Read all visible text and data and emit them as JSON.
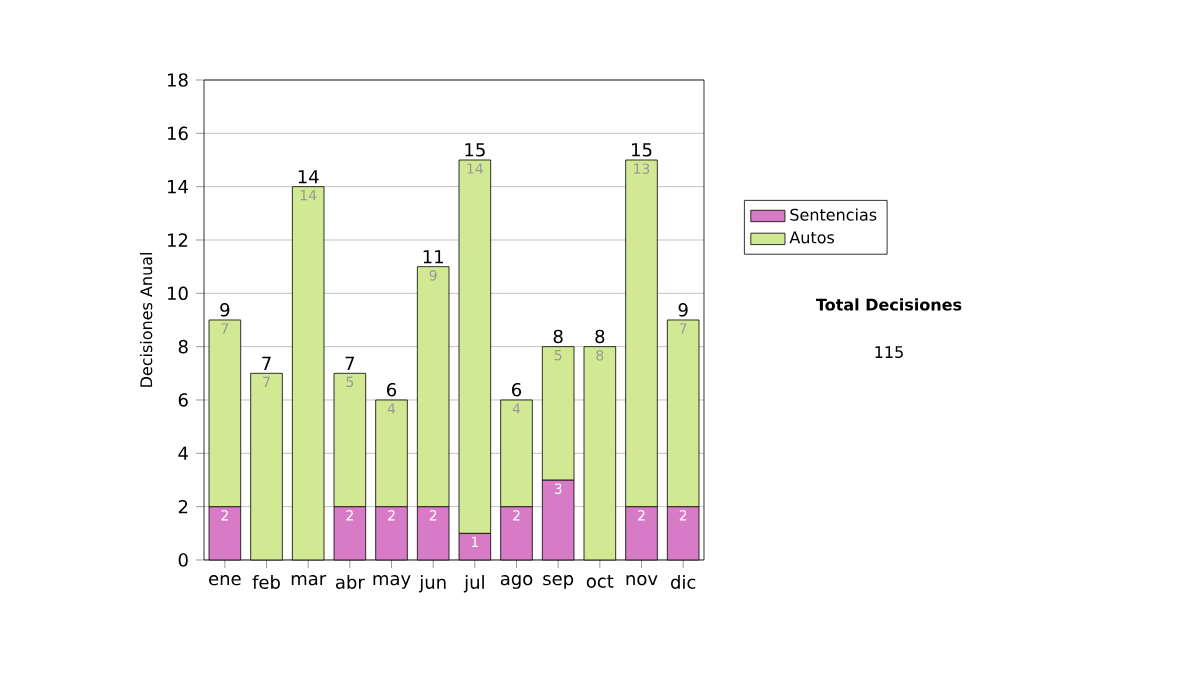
{
  "chart_data": {
    "type": "bar",
    "stacked": true,
    "ylabel": "Decisiones Anual",
    "categories": [
      "ene",
      "feb",
      "mar",
      "abr",
      "may",
      "jun",
      "jul",
      "ago",
      "sep",
      "oct",
      "nov",
      "dic"
    ],
    "series": [
      {
        "name": "Sentencias",
        "color": "#d87bc6",
        "values": [
          2,
          0,
          0,
          2,
          2,
          2,
          1,
          2,
          3,
          0,
          2,
          2
        ],
        "value_labels": [
          "2",
          null,
          null,
          "2",
          "2",
          "2",
          "1",
          "2",
          "3",
          null,
          "2",
          "2"
        ]
      },
      {
        "name": "Autos",
        "color": "#d2e994",
        "values": [
          7,
          7,
          14,
          5,
          4,
          9,
          14,
          4,
          5,
          8,
          13,
          7
        ],
        "value_labels": [
          "7",
          "7",
          "14",
          "5",
          "4",
          "9",
          "14",
          "4",
          "5",
          "8",
          "13",
          "7"
        ]
      }
    ],
    "totals": [
      "9",
      "7",
      "14",
      "7",
      "6",
      "11",
      "15",
      "6",
      "8",
      "8",
      "15",
      "9"
    ],
    "ylim": [
      0,
      18
    ],
    "yticks": [
      0,
      2,
      4,
      6,
      8,
      10,
      12,
      14,
      16,
      18
    ],
    "grid": "y",
    "legend": "right",
    "annotations": [
      "Total Decisiones",
      "115"
    ]
  }
}
